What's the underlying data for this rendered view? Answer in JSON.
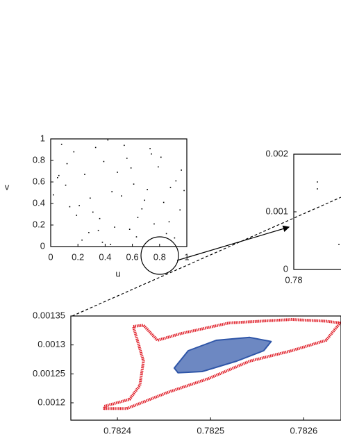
{
  "chart_data": [
    {
      "type": "scatter",
      "xlabel": "u",
      "ylabel": "v",
      "color": "#000000",
      "xlim": [
        0,
        1
      ],
      "ylim": [
        0,
        1
      ],
      "xticks": [
        0,
        0.2,
        0.4,
        0.6,
        0.8,
        1
      ],
      "yticks": [
        0,
        0.2,
        0.4,
        0.6,
        0.8,
        1
      ],
      "x": [
        0.12,
        0.87,
        0.45,
        0.33,
        0.91,
        0.05,
        0.67,
        0.28,
        0.74,
        0.52,
        0.19,
        0.96,
        0.38,
        0.61,
        0.08,
        0.83,
        0.47,
        0.25,
        0.71,
        0.56,
        0.14,
        0.92,
        0.36,
        0.63,
        0.02,
        0.79,
        0.42,
        0.31,
        0.88,
        0.58,
        0.17,
        0.69,
        0.49,
        0.23,
        0.95,
        0.11,
        0.76,
        0.39,
        0.54,
        0.85,
        0.06,
        0.64,
        0.29,
        0.81,
        0.44,
        0.98,
        0.21,
        0.73,
        0.35,
        0.59
      ],
      "y": [
        0.77,
        0.23,
        0.51,
        0.92,
        0.08,
        0.64,
        0.35,
        0.13,
        0.86,
        0.47,
        0.29,
        0.71,
        0.04,
        0.58,
        0.95,
        0.41,
        0.18,
        0.67,
        0.53,
        0.82,
        0.37,
        0.61,
        0.26,
        0.09,
        0.48,
        0.74,
        0.99,
        0.32,
        0.55,
        0.16,
        0.88,
        0.43,
        0.69,
        0.06,
        0.34,
        0.57,
        0.21,
        0.79,
        0.94,
        0.12,
        0.66,
        0.27,
        0.45,
        0.83,
        0.02,
        0.52,
        0.38,
        0.91,
        0.15,
        0.73
      ]
    },
    {
      "type": "scatter",
      "color": "#000000",
      "xlim": [
        0.78,
        0.8
      ],
      "ylim": [
        0,
        0.002
      ],
      "xticks": [
        0.78
      ],
      "yticks": [
        0,
        0.001,
        0.002
      ],
      "x": [
        0.78496,
        0.78496,
        0.78949
      ],
      "y": [
        0.001518,
        0.001398,
        0.000434
      ]
    },
    {
      "type": "line",
      "xlim": [
        0.78235,
        0.78264
      ],
      "ylim": [
        0.00117,
        0.00135
      ],
      "xticks": [
        0.7824,
        0.7825,
        0.7826
      ],
      "yticks": [
        0.0012,
        0.00125,
        0.0013,
        0.00135
      ],
      "series": [
        {
          "color": "#e0202a",
          "x": [
            0.782386,
            0.782413,
            0.782424,
            0.782428,
            0.782417,
            0.782428,
            0.782443,
            0.782469,
            0.78252,
            0.782587,
            0.782624,
            0.782639,
            0.782624,
            0.782587,
            0.782542,
            0.782498,
            0.782454,
            0.78241,
            0.782386
          ],
          "y": [
            0.001194,
            0.001206,
            0.00123,
            0.001272,
            0.001332,
            0.001334,
            0.001308,
            0.00132,
            0.001338,
            0.001344,
            0.001341,
            0.001338,
            0.001308,
            0.00129,
            0.001272,
            0.001242,
            0.001218,
            0.00119,
            0.00119
          ]
        },
        {
          "color": "#2f56a8",
          "x": [
            0.782461,
            0.782476,
            0.782506,
            0.782542,
            0.782565,
            0.782557,
            0.782528,
            0.782491,
            0.782465
          ],
          "y": [
            0.00126,
            0.00129,
            0.001308,
            0.001313,
            0.001306,
            0.00129,
            0.001272,
            0.001254,
            0.001252
          ]
        }
      ]
    }
  ]
}
